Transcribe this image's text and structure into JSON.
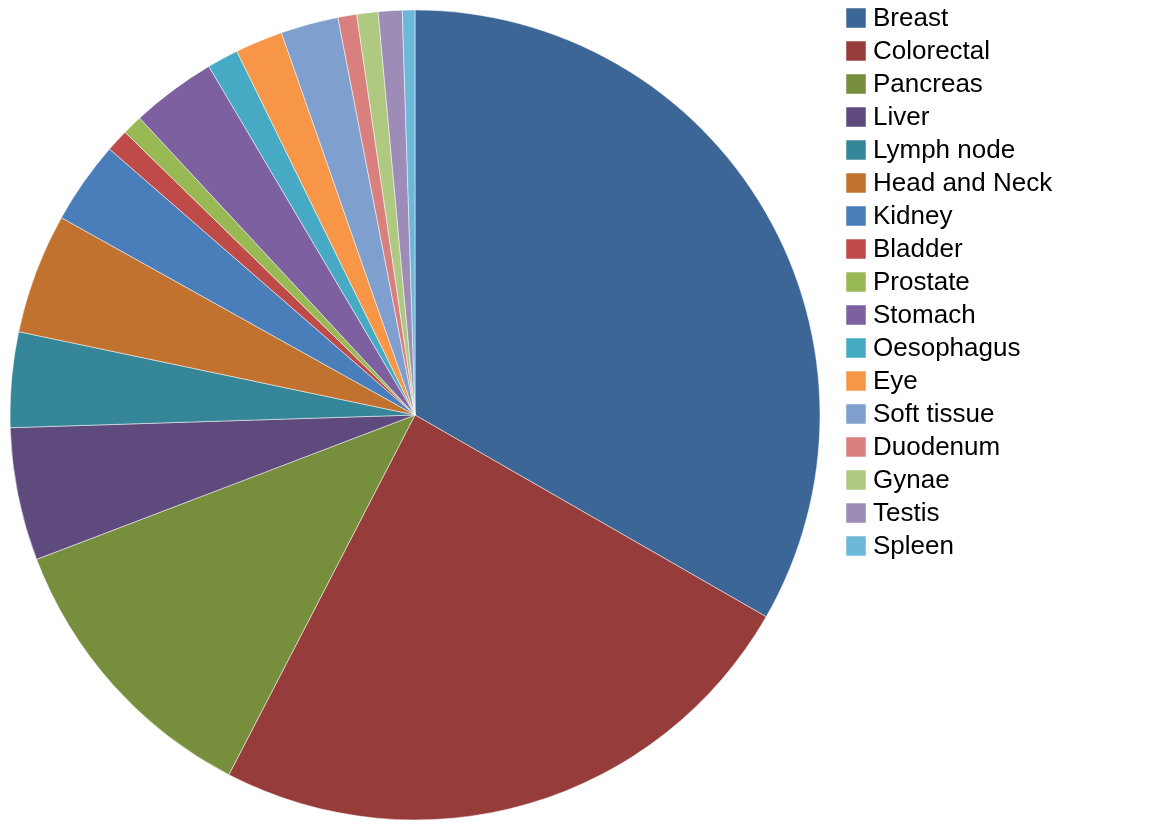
{
  "chart_data": {
    "type": "pie",
    "categories": [
      "Breast",
      "Colorectal",
      "Pancreas",
      "Liver",
      "Lymph node",
      "Head and Neck",
      "Kidney",
      "Bladder",
      "Prostate",
      "Stomach",
      "Oesophagus",
      "Eye",
      "Soft tissue",
      "Duodenum",
      "Gynae",
      "Testis",
      "Spleen"
    ],
    "values": [
      33.3,
      24.3,
      11.6,
      5.3,
      3.8,
      4.8,
      3.3,
      0.9,
      0.8,
      3.4,
      1.25,
      1.9,
      2.3,
      0.75,
      0.85,
      0.95,
      0.5
    ],
    "colors": [
      "#3c6695",
      "#963c3a",
      "#778f3d",
      "#5f4a7d",
      "#358698",
      "#c2722f",
      "#4a7ebb",
      "#be4b48",
      "#98b954",
      "#7d60a0",
      "#46aac5",
      "#f79646",
      "#7f9fcf",
      "#d9807e",
      "#b0c980",
      "#9d8bb8",
      "#6cb8d8"
    ],
    "legend": "right"
  }
}
